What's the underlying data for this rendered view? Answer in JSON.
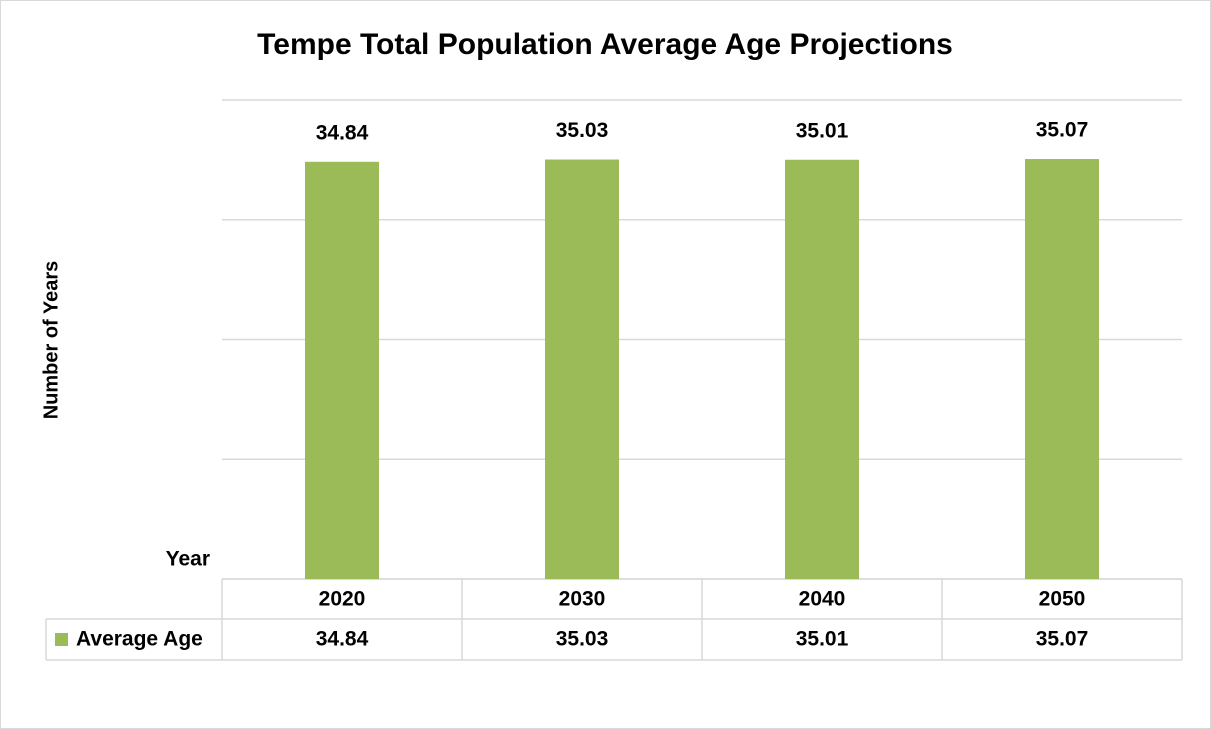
{
  "chart_data": {
    "type": "bar",
    "title": "Tempe Total Population Average Age Projections",
    "y_label": "Number of Years",
    "x_label": "Year",
    "categories": [
      "2020",
      "2030",
      "2040",
      "2050"
    ],
    "series": [
      {
        "name": "Average Age",
        "color": "#9bbb59",
        "values": [
          34.84,
          35.03,
          35.01,
          35.07
        ]
      }
    ],
    "ylim": [
      0,
      40
    ],
    "yticks": [
      0,
      10,
      20,
      30,
      40
    ],
    "grid": true
  }
}
